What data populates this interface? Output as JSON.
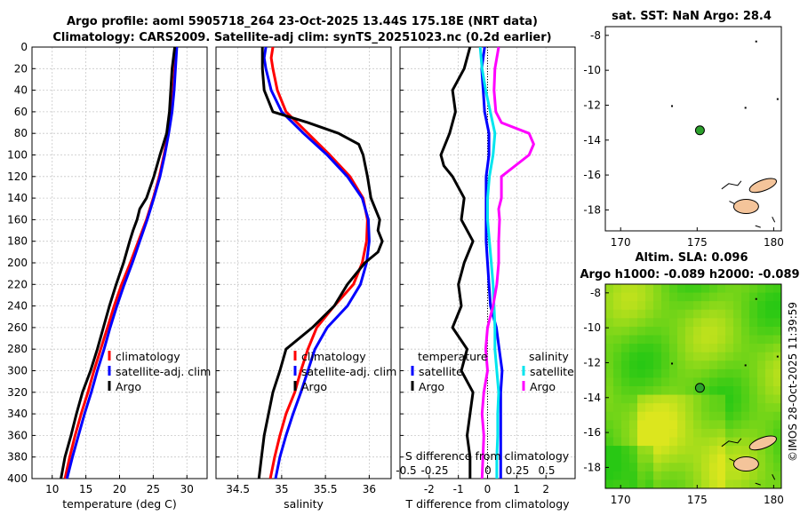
{
  "header": {
    "line1": "Argo profile: aoml 5905718_264 23-Oct-2025 13.44S 175.18E (NRT data)",
    "line2": "Climatology: CARS2009. Satellite-adj clim: synTS_20251023.nc (0.2d earlier)"
  },
  "colors": {
    "climatology": "#ff0000",
    "satellite": "#0000ff",
    "argo": "#000000",
    "sat_t_diff": "#0000ff",
    "sat_s_diff": "#00e5ee",
    "argo_s_diff": "#ff00ff",
    "land": "#f4c49a",
    "marker": "#2ca02c"
  },
  "chart_data": [
    {
      "id": "temperature",
      "type": "line",
      "xlabel": "temperature (deg C)",
      "ylim": [
        0,
        400
      ],
      "yreversed": true,
      "xlim": [
        7,
        33
      ],
      "xticks": [
        10,
        15,
        20,
        25,
        30
      ],
      "yticks": [
        0,
        20,
        40,
        60,
        80,
        100,
        120,
        140,
        160,
        180,
        200,
        220,
        240,
        260,
        280,
        300,
        320,
        340,
        360,
        380,
        400
      ],
      "legend": [
        "climatology",
        "satellite-adj. clim",
        "Argo"
      ],
      "series": [
        {
          "name": "climatology",
          "depth": [
            0,
            20,
            40,
            60,
            80,
            100,
            120,
            140,
            160,
            180,
            200,
            220,
            240,
            260,
            280,
            300,
            320,
            340,
            360,
            380,
            400
          ],
          "values": [
            28.3,
            28.2,
            28.0,
            27.7,
            27.2,
            26.6,
            25.9,
            25.0,
            24.0,
            22.8,
            21.6,
            20.3,
            19.2,
            18.2,
            17.2,
            16.2,
            15.3,
            14.3,
            13.4,
            12.6,
            11.9
          ]
        },
        {
          "name": "satellite-adj. clim",
          "depth": [
            0,
            20,
            40,
            60,
            80,
            100,
            120,
            140,
            160,
            180,
            200,
            220,
            240,
            260,
            280,
            300,
            320,
            340,
            360,
            380,
            400
          ],
          "values": [
            28.5,
            28.3,
            28.1,
            27.8,
            27.3,
            26.7,
            26.0,
            25.1,
            24.1,
            23.0,
            21.9,
            20.7,
            19.6,
            18.6,
            17.7,
            16.7,
            15.8,
            14.8,
            13.9,
            13.0,
            12.2
          ]
        },
        {
          "name": "Argo",
          "depth": [
            0,
            20,
            40,
            60,
            80,
            100,
            120,
            140,
            150,
            160,
            170,
            180,
            200,
            220,
            240,
            260,
            280,
            300,
            320,
            340,
            360,
            380,
            400
          ],
          "values": [
            28.2,
            27.8,
            27.6,
            27.4,
            27.0,
            26.0,
            25.1,
            24.0,
            23.0,
            22.6,
            22.0,
            21.5,
            20.6,
            19.5,
            18.5,
            17.6,
            16.7,
            15.7,
            14.5,
            13.6,
            12.8,
            11.9,
            11.3
          ]
        }
      ]
    },
    {
      "id": "salinity",
      "type": "line",
      "xlabel": "salinity",
      "ylim": [
        0,
        400
      ],
      "yreversed": true,
      "xlim": [
        34.25,
        36.25
      ],
      "xticks": [
        34.5,
        35,
        35.5,
        36
      ],
      "legend": [
        "climatology",
        "satellite-adj. clim",
        "Argo"
      ],
      "series": [
        {
          "name": "climatology",
          "depth": [
            0,
            10,
            20,
            40,
            60,
            80,
            100,
            120,
            140,
            160,
            180,
            200,
            220,
            240,
            260,
            280,
            300,
            320,
            340,
            360,
            380,
            400
          ],
          "values": [
            34.9,
            34.88,
            34.9,
            34.95,
            35.05,
            35.3,
            35.55,
            35.78,
            35.93,
            35.98,
            35.97,
            35.92,
            35.82,
            35.6,
            35.4,
            35.3,
            35.22,
            35.15,
            35.05,
            34.98,
            34.92,
            34.87
          ]
        },
        {
          "name": "satellite-adj. clim",
          "depth": [
            0,
            10,
            20,
            40,
            60,
            80,
            100,
            120,
            140,
            160,
            180,
            200,
            220,
            240,
            260,
            280,
            300,
            320,
            340,
            360,
            380,
            400
          ],
          "values": [
            34.82,
            34.8,
            34.82,
            34.88,
            35.0,
            35.25,
            35.52,
            35.75,
            35.92,
            35.99,
            36.0,
            35.97,
            35.9,
            35.75,
            35.52,
            35.38,
            35.3,
            35.22,
            35.13,
            35.05,
            34.98,
            34.93
          ]
        },
        {
          "name": "Argo",
          "depth": [
            0,
            20,
            40,
            60,
            70,
            80,
            90,
            100,
            120,
            140,
            160,
            170,
            180,
            190,
            200,
            220,
            240,
            260,
            280,
            300,
            320,
            340,
            360,
            380,
            400
          ],
          "values": [
            34.78,
            34.78,
            34.8,
            34.9,
            35.3,
            35.65,
            35.88,
            35.93,
            35.98,
            36.02,
            36.12,
            36.1,
            36.15,
            36.1,
            35.95,
            35.75,
            35.6,
            35.35,
            35.05,
            34.98,
            34.9,
            34.85,
            34.8,
            34.77,
            34.74
          ]
        }
      ]
    },
    {
      "id": "differences",
      "type": "line",
      "xlabel": "T difference from climatology",
      "xlabel_top": "S difference from climatology",
      "ylim": [
        0,
        400
      ],
      "yreversed": true,
      "xlim": [
        -3.0,
        3.0
      ],
      "xticks": [
        -2,
        -1,
        0,
        1,
        2
      ],
      "xticks_top": [
        "-0.5",
        "-0.25",
        "0",
        "0.25",
        "0.5"
      ],
      "legend_left_title": "temperature",
      "legend_left": [
        "satellite",
        "Argo"
      ],
      "legend_right_title": "salinity",
      "legend_right": [
        "satellite",
        "Argo"
      ],
      "series": [
        {
          "name": "temperature satellite",
          "depth": [
            0,
            20,
            40,
            60,
            80,
            100,
            120,
            140,
            160,
            180,
            200,
            220,
            240,
            260,
            280,
            300,
            320,
            340,
            360,
            380,
            400
          ],
          "values": [
            -0.1,
            -0.2,
            -0.15,
            -0.1,
            0.05,
            0.05,
            -0.05,
            -0.05,
            -0.05,
            -0.05,
            0.0,
            0.05,
            0.1,
            0.3,
            0.4,
            0.5,
            0.45,
            0.45,
            0.45,
            0.45,
            0.45
          ]
        },
        {
          "name": "temperature Argo",
          "depth": [
            0,
            20,
            40,
            60,
            80,
            100,
            110,
            120,
            140,
            160,
            180,
            200,
            220,
            240,
            260,
            280,
            300,
            320,
            340,
            360,
            380,
            400
          ],
          "values": [
            -0.6,
            -0.8,
            -1.2,
            -1.1,
            -1.3,
            -1.6,
            -1.5,
            -1.2,
            -0.8,
            -0.9,
            -0.5,
            -0.8,
            -1.0,
            -0.9,
            -1.2,
            -0.7,
            -0.9,
            -0.5,
            -0.6,
            -0.7,
            -0.6,
            -0.6
          ]
        },
        {
          "name": "salinity satellite",
          "depth": [
            0,
            20,
            40,
            60,
            80,
            100,
            120,
            140,
            160,
            180,
            200,
            220,
            240,
            260,
            280,
            300,
            320,
            340,
            360,
            380,
            400
          ],
          "values": [
            -0.08,
            -0.06,
            -0.02,
            0.03,
            0.08,
            0.06,
            0.02,
            0.0,
            0.0,
            0.02,
            0.04,
            0.06,
            0.07,
            0.08,
            0.08,
            0.1,
            0.12,
            0.11,
            0.11,
            0.1,
            0.1
          ]
        },
        {
          "name": "salinity Argo",
          "depth": [
            0,
            20,
            40,
            60,
            70,
            80,
            90,
            100,
            120,
            140,
            150,
            160,
            180,
            200,
            220,
            240,
            260,
            280,
            300,
            320,
            340,
            360,
            380,
            400
          ],
          "values": [
            0.12,
            0.08,
            0.07,
            0.09,
            0.15,
            0.45,
            0.5,
            0.45,
            0.15,
            0.15,
            0.12,
            0.13,
            0.12,
            0.12,
            0.1,
            0.06,
            0.0,
            -0.02,
            0.0,
            -0.04,
            -0.06,
            -0.04,
            -0.05,
            -0.06
          ]
        }
      ]
    },
    {
      "id": "sst_map",
      "type": "scatter",
      "title": "sat. SST: NaN Argo: 28.4",
      "xlim": [
        169,
        180.5
      ],
      "ylim": [
        -19.2,
        -7.5
      ],
      "xticks": [
        170,
        175,
        180
      ],
      "yticks": [
        -8,
        -10,
        -12,
        -14,
        -16,
        -18
      ],
      "marker": {
        "lon": 175.18,
        "lat": -13.44
      }
    },
    {
      "id": "sla_map",
      "type": "heatmap",
      "title": "Altim. SLA: 0.096",
      "subtitle": "Argo h1000: -0.089 h2000: -0.089",
      "xlim": [
        169,
        180.5
      ],
      "ylim": [
        -19.2,
        -7.5
      ],
      "xticks": [
        170,
        175,
        180
      ],
      "yticks": [
        -8,
        -10,
        -12,
        -14,
        -16,
        -18
      ],
      "marker": {
        "lon": 175.18,
        "lat": -13.44
      }
    }
  ],
  "side_label": "©IMOS 28-Oct-2025 11:39:59"
}
